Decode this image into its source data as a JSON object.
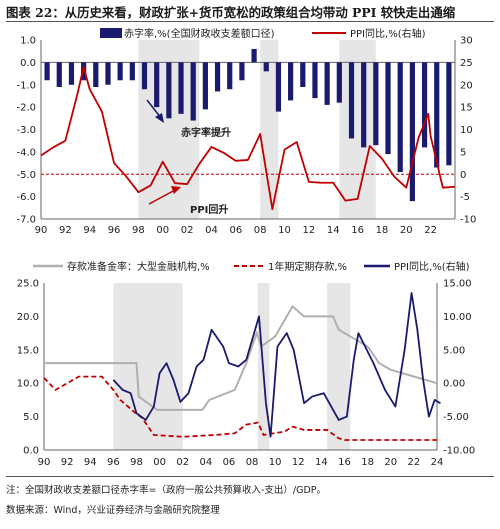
{
  "title": "图表 22：从历史来看，财政扩张+货币宽松的政策组合均带动 PPI 较快走出通缩",
  "footer": {
    "note": "注：全国财政收支差额口径赤字率=（政府一般公共预算收入-支出）/GDP。",
    "source": "数据来源：Wind，兴业证券经济与金融研究院整理"
  },
  "colors": {
    "navy": "#1a1a6e",
    "red": "#c00000",
    "gray": "#b0b0b0",
    "shade": "#e6e6e6"
  },
  "chart_data": [
    {
      "type": "bar",
      "legend": [
        "赤字率,%(全国财政收支差额口径)",
        "PPI同比,%(右轴)"
      ],
      "annotations": [
        "赤字率提升",
        "PPI回升"
      ],
      "x_ticks": [
        "90",
        "92",
        "94",
        "96",
        "98",
        "00",
        "02",
        "04",
        "06",
        "08",
        "10",
        "12",
        "14",
        "16",
        "18",
        "20",
        "22"
      ],
      "y_left": {
        "range": [
          -7.0,
          1.0
        ],
        "ticks": [
          "1.0",
          "0.0",
          "-1.0",
          "-2.0",
          "-3.0",
          "-4.0",
          "-5.0",
          "-6.0",
          "-7.0"
        ]
      },
      "y_right": {
        "range": [
          -10,
          30
        ],
        "ticks": [
          "30",
          "25",
          "20",
          "15",
          "10",
          "5",
          "0",
          "-5",
          "-10"
        ]
      },
      "reference_line_right": 0,
      "shaded_periods": [
        [
          1998,
          2003
        ],
        [
          2008,
          2009.5
        ],
        [
          2014.5,
          2017.5
        ]
      ],
      "series": [
        {
          "name": "赤字率,%(全国财政收支差额口径)",
          "x": [
            1990,
            1991,
            1992,
            1993,
            1994,
            1995,
            1996,
            1997,
            1998,
            1999,
            2000,
            2001,
            2002,
            2003,
            2004,
            2005,
            2006,
            2007,
            2008,
            2009,
            2010,
            2011,
            2012,
            2013,
            2014,
            2015,
            2016,
            2017,
            2018,
            2019,
            2020,
            2021,
            2022,
            2023
          ],
          "values": [
            -0.8,
            -1.1,
            -1.0,
            -0.8,
            -1.1,
            -1.0,
            -0.8,
            -0.8,
            -1.2,
            -2.0,
            -2.5,
            -2.3,
            -2.6,
            -2.1,
            -1.3,
            -1.2,
            -0.8,
            0.6,
            -0.4,
            -2.2,
            -1.7,
            -1.1,
            -1.6,
            -1.9,
            -1.8,
            -3.4,
            -3.8,
            -3.7,
            -4.1,
            -4.9,
            -6.2,
            -3.8,
            -4.7,
            -4.6
          ]
        },
        {
          "name": "PPI同比,%(右轴)",
          "x": [
            1990,
            1991,
            1992,
            1993,
            1993.5,
            1994,
            1995,
            1996,
            1997,
            1998,
            1999,
            2000,
            2001,
            2002,
            2003,
            2004,
            2005,
            2006,
            2007,
            2008,
            2009,
            2010,
            2011,
            2012,
            2013,
            2014,
            2015,
            2016,
            2017,
            2018,
            2019,
            2020,
            2021,
            2021.8,
            2022,
            2023,
            2024
          ],
          "values": [
            4.2,
            6.0,
            7.5,
            18.0,
            24.0,
            19.0,
            14.0,
            2.5,
            -0.5,
            -4.0,
            -2.5,
            2.8,
            -2.0,
            -2.2,
            2.3,
            6.1,
            4.8,
            3.0,
            3.2,
            9.0,
            -7.8,
            5.5,
            7.2,
            -1.7,
            -1.9,
            -1.9,
            -5.9,
            -5.5,
            6.3,
            3.5,
            -0.5,
            -3.0,
            8.1,
            13.5,
            8.5,
            -3.0,
            -2.8
          ]
        }
      ]
    },
    {
      "type": "line",
      "legend": [
        "存款准备金率：大型金融机构,%",
        "1年期定期存款,%",
        "PPI同比,%(右轴)"
      ],
      "x_ticks": [
        "90",
        "92",
        "94",
        "96",
        "98",
        "00",
        "02",
        "04",
        "06",
        "08",
        "10",
        "12",
        "14",
        "16",
        "18",
        "20",
        "22",
        "24"
      ],
      "y_left": {
        "range": [
          0,
          25
        ],
        "ticks": [
          "25.0",
          "20.0",
          "15.0",
          "10.0",
          "5.0",
          "0.0"
        ]
      },
      "y_right": {
        "range": [
          -10,
          15
        ],
        "ticks": [
          "15.00",
          "10.00",
          "5.00",
          "0.00",
          "-5.00",
          "-10.00"
        ]
      },
      "shaded_periods": [
        [
          1996,
          1998
        ],
        [
          1998,
          2002
        ],
        [
          2008.5,
          2009.5
        ],
        [
          2014.5,
          2016.5
        ]
      ],
      "series": [
        {
          "name": "存款准备金率：大型金融机构,%",
          "x": [
            1990,
            1998,
            1998.2,
            1999.8,
            2003.7,
            2004.3,
            2006.5,
            2007.5,
            2008.4,
            2008.8,
            2010,
            2011.5,
            2012.5,
            2015,
            2015.5,
            2016.5,
            2018,
            2019,
            2020,
            2022,
            2023,
            2024
          ],
          "values": [
            13.0,
            13.0,
            8.0,
            6.0,
            6.0,
            7.5,
            9.0,
            13.0,
            17.5,
            15.5,
            17.0,
            21.5,
            20.0,
            20.0,
            18.0,
            17.0,
            15.5,
            13.0,
            12.0,
            11.0,
            10.5,
            10.0
          ]
        },
        {
          "name": "1年期定期存款,%",
          "x": [
            1990,
            1991,
            1993,
            1995,
            1996,
            1996.6,
            1997.8,
            1998.5,
            1999.5,
            2002,
            2004.8,
            2006.5,
            2007.5,
            2008.5,
            2009,
            2010.8,
            2011.5,
            2012.5,
            2014.5,
            2015.5,
            2016,
            2024
          ],
          "values": [
            10.8,
            9.0,
            10.98,
            10.98,
            9.0,
            7.5,
            5.7,
            4.8,
            2.25,
            1.98,
            2.25,
            2.5,
            3.8,
            4.1,
            2.25,
            2.75,
            3.5,
            3.0,
            3.0,
            1.75,
            1.5,
            1.5
          ]
        },
        {
          "name": "PPI同比,%(右轴)",
          "x": [
            1996,
            1996.8,
            1997.5,
            1998,
            1998.8,
            1999.5,
            2000,
            2000.6,
            2001.2,
            2001.8,
            2002.5,
            2003.2,
            2003.8,
            2004.5,
            2005.5,
            2006,
            2006.8,
            2007.5,
            2008.6,
            2009.2,
            2009.6,
            2010.2,
            2011,
            2011.6,
            2012.5,
            2013.2,
            2014.2,
            2015.5,
            2016.2,
            2016.8,
            2017.2,
            2018.5,
            2019.5,
            2020.4,
            2021.2,
            2021.8,
            2022.3,
            2022.8,
            2023.3,
            2023.8,
            2024.3
          ],
          "values": [
            0.5,
            -1.0,
            -1.5,
            -4.5,
            -5.5,
            -3.5,
            1.5,
            3.0,
            0.5,
            -2.8,
            -1.5,
            2.5,
            3.5,
            8.0,
            5.5,
            3.0,
            2.5,
            3.5,
            10.0,
            -3.0,
            -8.0,
            5.5,
            7.5,
            5.0,
            -3.0,
            -2.0,
            -1.5,
            -5.5,
            -5.0,
            3.5,
            7.5,
            3.0,
            -1.0,
            -3.5,
            5.0,
            13.5,
            8.0,
            0.5,
            -5.0,
            -2.5,
            -3.0
          ]
        }
      ]
    }
  ]
}
